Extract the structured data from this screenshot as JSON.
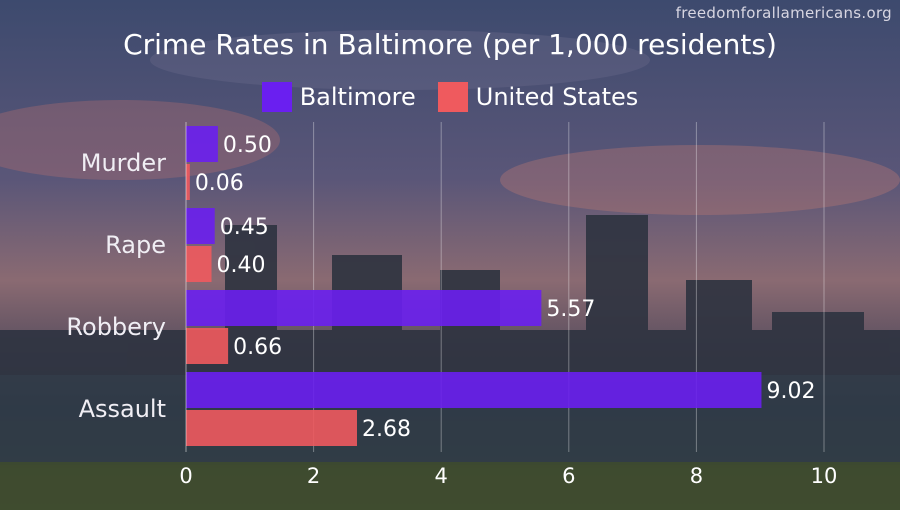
{
  "site": "freedomforallamericans.org",
  "colors": {
    "baltimore": "#6a1ff0",
    "united_states": "#ef5a5e",
    "text": "#ffffff"
  },
  "chart_data": {
    "type": "bar",
    "orientation": "horizontal",
    "title": "Crime Rates in Baltimore (per 1,000 residents)",
    "categories": [
      "Murder",
      "Rape",
      "Robbery",
      "Assault"
    ],
    "series": [
      {
        "name": "Baltimore",
        "values": [
          0.5,
          0.45,
          5.57,
          9.02
        ],
        "labels": [
          "0.50",
          "0.45",
          "5.57",
          "9.02"
        ]
      },
      {
        "name": "United States",
        "values": [
          0.06,
          0.4,
          0.66,
          2.68
        ],
        "labels": [
          "0.06",
          "0.40",
          "0.66",
          "2.68"
        ]
      }
    ],
    "xlim": [
      0,
      10.5
    ],
    "xticks": [
      0,
      2,
      4,
      6,
      8,
      10
    ],
    "legend": "top-center",
    "grid": "vertical"
  }
}
